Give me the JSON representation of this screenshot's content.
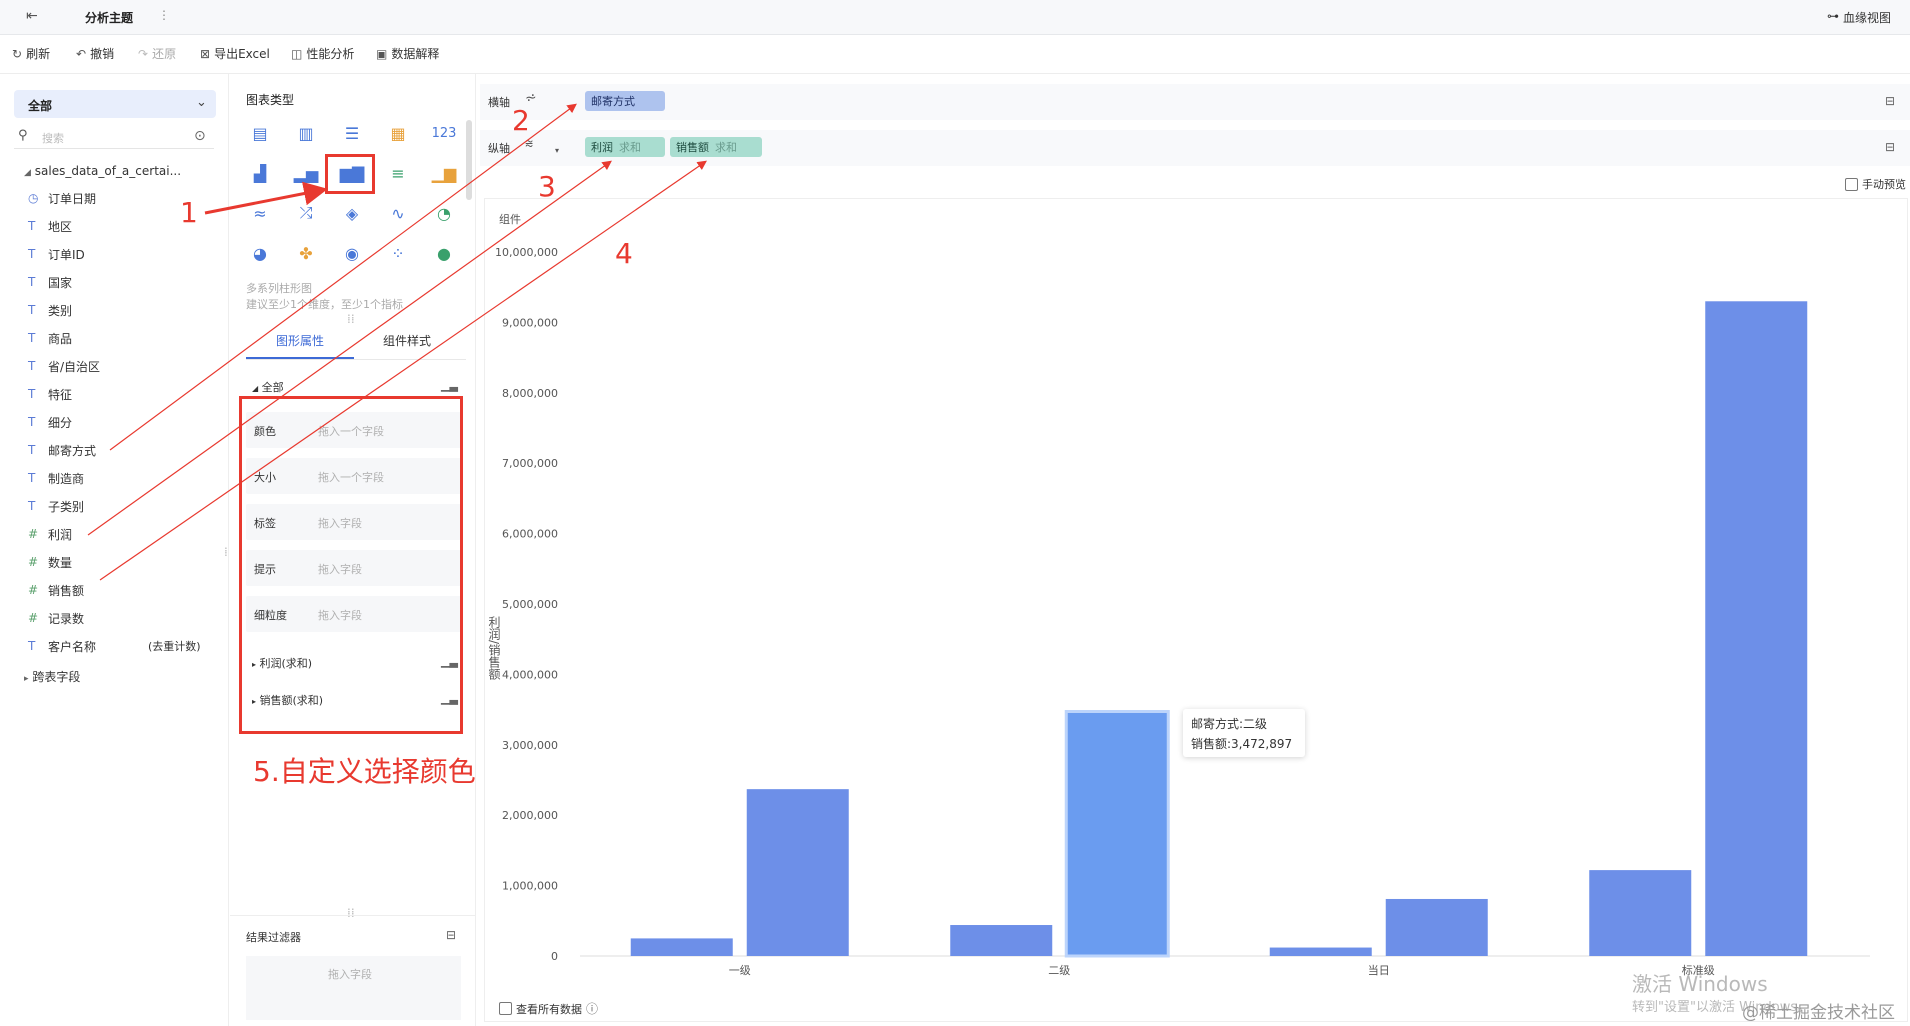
{
  "header": {
    "title": "分析主题",
    "more": "⋮",
    "lineage": "血缘视图"
  },
  "toolbar": {
    "refresh": "刷新",
    "undo": "撤销",
    "redo": "还原",
    "export": "导出Excel",
    "perf": "性能分析",
    "explain": "数据解释"
  },
  "left": {
    "dropdown": "全部",
    "search_placeholder": "搜索",
    "dataset": "sales_data_of_a_certai...",
    "fields": [
      {
        "type": "date",
        "icon": "◷",
        "name": "订单日期"
      },
      {
        "type": "text",
        "icon": "T",
        "name": "地区"
      },
      {
        "type": "text",
        "icon": "T",
        "name": "订单ID"
      },
      {
        "type": "text",
        "icon": "T",
        "name": "国家"
      },
      {
        "type": "text",
        "icon": "T",
        "name": "类别"
      },
      {
        "type": "text",
        "icon": "T",
        "name": "商品"
      },
      {
        "type": "text",
        "icon": "T",
        "name": "省/自治区"
      },
      {
        "type": "text",
        "icon": "T",
        "name": "特征"
      },
      {
        "type": "text",
        "icon": "T",
        "name": "细分"
      },
      {
        "type": "text",
        "icon": "T",
        "name": "邮寄方式"
      },
      {
        "type": "text",
        "icon": "T",
        "name": "制造商"
      },
      {
        "type": "text",
        "icon": "T",
        "name": "子类别"
      },
      {
        "type": "num",
        "icon": "#",
        "name": "利润"
      },
      {
        "type": "num",
        "icon": "#",
        "name": "数量"
      },
      {
        "type": "num",
        "icon": "#",
        "name": "销售额"
      },
      {
        "type": "num",
        "icon": "#",
        "name": "记录数"
      },
      {
        "type": "text",
        "icon": "T",
        "name": "客户名称",
        "extra": "(去重计数)"
      }
    ],
    "cross_fields": "跨表字段"
  },
  "charttypes": {
    "label": "图表类型",
    "hint1": "多系列柱形图",
    "hint2": "建议至少1个维度，至少1个指标",
    "tab1": "图形属性",
    "tab2": "组件样式",
    "all": "全部",
    "props": [
      {
        "label": "颜色",
        "ph": "拖入一个字段"
      },
      {
        "label": "大小",
        "ph": "拖入一个字段"
      },
      {
        "label": "标签",
        "ph": "拖入字段"
      },
      {
        "label": "提示",
        "ph": "拖入字段"
      },
      {
        "label": "细粒度",
        "ph": "拖入字段"
      }
    ],
    "series1": "利润(求和)",
    "series2": "销售额(求和)",
    "filter_title": "结果过滤器",
    "filter_ph": "拖入字段"
  },
  "axes": {
    "x_label": "横轴",
    "y_label": "纵轴",
    "x_pill": "邮寄方式",
    "y_pill1": "利润",
    "y_pill1_agg": "求和",
    "y_pill2": "销售额",
    "y_pill2_agg": "求和",
    "manual_preview": "手动预览"
  },
  "chart_area": {
    "component": "组件",
    "view_all": "查看所有数据",
    "tooltip_line1": "邮寄方式:二级",
    "tooltip_line2": "销售额:3,472,897"
  },
  "annotations": {
    "n1": "1",
    "n2": "2",
    "n3": "3",
    "n4": "4",
    "n5": "5.自定义选择颜色"
  },
  "watermark": {
    "line1": "激活 Windows",
    "line2": "转到\"设置\"以激活 Windows。",
    "credit": "@稀土掘金技术社区"
  },
  "colors": {
    "bar": "#6d8fe8",
    "highlight": "#e8392f",
    "accent": "#5b7bd5"
  },
  "chart_data": {
    "type": "bar",
    "categories": [
      "一级",
      "二级",
      "当日",
      "标准级"
    ],
    "ylabel": "利润/销售额",
    "ylim": [
      0,
      10000000
    ],
    "yticks": [
      "0",
      "1,000,000",
      "2,000,000",
      "3,000,000",
      "4,000,000",
      "5,000,000",
      "6,000,000",
      "7,000,000",
      "8,000,000",
      "9,000,000",
      "10,000,000"
    ],
    "series": [
      {
        "name": "利润",
        "values": [
          250000,
          440000,
          120000,
          1220000
        ]
      },
      {
        "name": "销售额",
        "values": [
          2370000,
          3472897,
          810000,
          9300000
        ]
      }
    ]
  }
}
